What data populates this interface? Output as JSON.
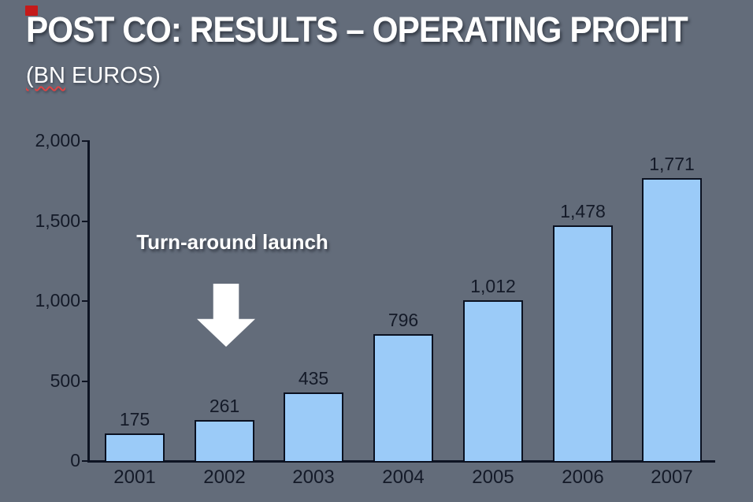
{
  "slide": {
    "title": "POST CO: RESULTS – OPERATING PROFIT",
    "subtitle": {
      "underlined_part": "(BN",
      "rest": " EUROS)"
    }
  },
  "annotation": {
    "text": "Turn-around launch",
    "shape": "block-down-arrow"
  },
  "colors": {
    "background": "#636c7a",
    "bar_fill": "#9bcbf8",
    "bar_border": "#0b1120",
    "axis": "#0d1322",
    "dark_text": "#141a28",
    "light_text": "#ffffff",
    "spellcheck_underline": "#e04343",
    "accent_red": "#c51a1a"
  },
  "chart_data": {
    "type": "bar",
    "title": "POST CO: RESULTS – OPERATING PROFIT (BN EUROS)",
    "categories": [
      "2001",
      "2002",
      "2003",
      "2004",
      "2005",
      "2006",
      "2007"
    ],
    "values": [
      175,
      261,
      435,
      796,
      1012,
      1478,
      1771
    ],
    "value_labels": [
      "175",
      "261",
      "435",
      "796",
      "1,012",
      "1,478",
      "1,771"
    ],
    "xlabel": "",
    "ylabel": "",
    "ylim": [
      0,
      2000
    ],
    "y_ticks": [
      0,
      500,
      1000,
      1500,
      2000
    ],
    "y_tick_labels": [
      "0",
      "500",
      "1,000",
      "1,500",
      "2,000"
    ],
    "grid": false,
    "legend": false,
    "annotations": [
      {
        "text": "Turn-around launch",
        "shape": "down-arrow",
        "points_at": "early years / 2002"
      }
    ]
  }
}
